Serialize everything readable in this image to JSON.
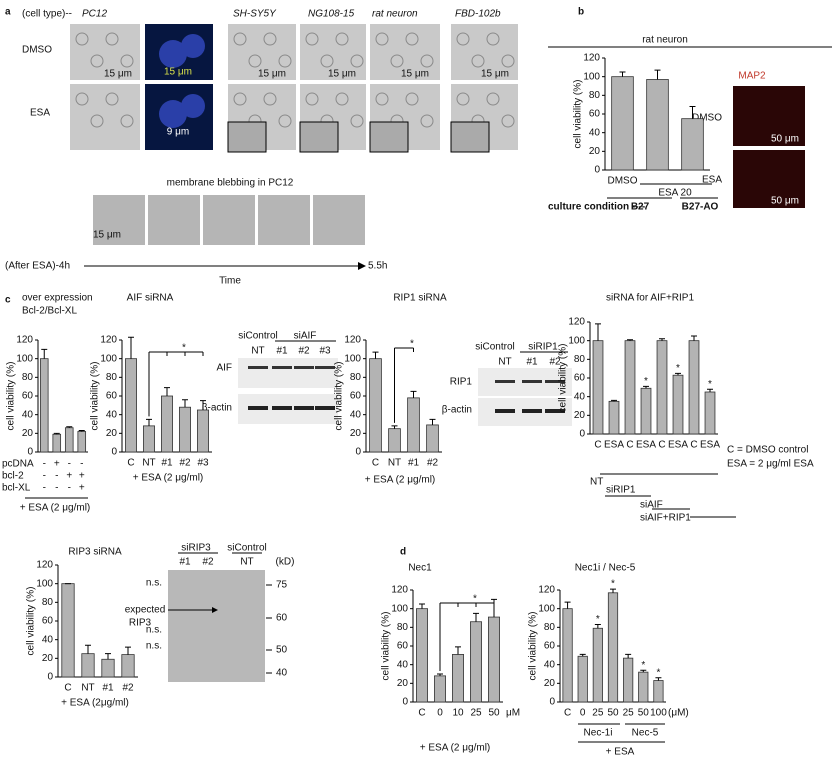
{
  "panel_letters": [
    "a",
    "b",
    "c",
    "d"
  ],
  "panel_a": {
    "cell_type_label": "(cell type)--",
    "cell_types": [
      "PC12",
      "SH-SY5Y",
      "NG108-15",
      "rat neuron",
      "FBD-102b"
    ],
    "rows": [
      "DMSO",
      "ESA"
    ],
    "scale_15": "15 μm",
    "scale_9": "9 μm",
    "blebbing_title": "membrane blebbing in PC12",
    "time_start": "(After ESA)-4h",
    "time_end": "5.5h",
    "time_label": "Time"
  },
  "map2": {
    "title": "MAP2",
    "rows": [
      "DMSO",
      "ESA"
    ],
    "scale": "50 μm"
  },
  "aif_blot": {
    "headers": [
      "siControl",
      "siAIF"
    ],
    "lanes": [
      "NT",
      "#1",
      "#2",
      "#3"
    ],
    "rows": [
      "AIF",
      "β-actin"
    ]
  },
  "rip1_blot": {
    "headers": [
      "siControl",
      "siRIP1"
    ],
    "lanes": [
      "NT",
      "#1",
      "#2"
    ],
    "rows": [
      "RIP1",
      "β-actin"
    ]
  },
  "rip3_blot": {
    "headers": [
      "siRIP3",
      "siControl"
    ],
    "lanes": [
      "#1",
      "#2",
      "NT"
    ],
    "unit": "(kD)",
    "markers": [
      75,
      60,
      50,
      40
    ],
    "expected": [
      "expected",
      "RIP3"
    ],
    "ns": "n.s."
  },
  "chart_data": [
    {
      "type": "bar",
      "title": "rat neuron",
      "ylabel": "cell viability (%)",
      "categories": [
        "DMSO",
        null,
        null
      ],
      "values": [
        100,
        97,
        55
      ],
      "errors": [
        5,
        10,
        13
      ],
      "ylim": [
        0,
        120
      ],
      "yticks": [
        0,
        20,
        40,
        60,
        80,
        100,
        120
      ],
      "color": "#b3b3b3",
      "group_label": "ESA 20",
      "condition_label": "culture condition ----",
      "conditions": [
        "B27",
        "B27-AO"
      ]
    },
    {
      "type": "bar",
      "title_lines": [
        "over expression",
        "Bcl-2/Bcl-XL"
      ],
      "ylabel": "cell viability (%)",
      "values": [
        100,
        19,
        26,
        22
      ],
      "errors": [
        10,
        1,
        1,
        1
      ],
      "ylim": [
        0,
        120
      ],
      "yticks": [
        0,
        20,
        40,
        60,
        80,
        100,
        120
      ],
      "color": "#b3b3b3",
      "sign_rows": [
        {
          "name": "pcDNA",
          "signs": [
            "-",
            "+",
            "-",
            "-"
          ]
        },
        {
          "name": "bcl-2",
          "signs": [
            "-",
            "-",
            "+",
            "+"
          ]
        },
        {
          "name": "bcl-XL",
          "signs": [
            "-",
            "-",
            "-",
            "+"
          ]
        }
      ],
      "xlabel": "+ ESA (2 μg/ml)"
    },
    {
      "type": "bar",
      "title": "AIF siRNA",
      "ylabel": "cell viability (%)",
      "categories": [
        "C",
        "NT",
        "#1",
        "#2",
        "#3"
      ],
      "values": [
        100,
        28,
        60,
        48,
        45
      ],
      "errors": [
        23,
        7,
        9,
        8,
        10
      ],
      "ylim": [
        0,
        120
      ],
      "yticks": [
        0,
        20,
        40,
        60,
        80,
        100,
        120
      ],
      "color": "#b3b3b3",
      "bracket_label": "*",
      "xlabel": "+ ESA (2 μg/ml)"
    },
    {
      "type": "bar",
      "title": "RIP1 siRNA",
      "ylabel": "cell viability (%)",
      "categories": [
        "C",
        "NT",
        "#1",
        "#2"
      ],
      "values": [
        100,
        25,
        58,
        29
      ],
      "errors": [
        7,
        3,
        7,
        6
      ],
      "ylim": [
        0,
        120
      ],
      "yticks": [
        0,
        20,
        40,
        60,
        80,
        100,
        120
      ],
      "color": "#b3b3b3",
      "bracket_label": "*",
      "xlabel": "+ ESA (2 μg/ml)"
    },
    {
      "type": "bar",
      "title": "siRNA for AIF+RIP1",
      "ylabel": "cell viability (%)",
      "categories": [
        "C",
        "ESA",
        "C",
        "ESA",
        "C",
        "ESA",
        "C",
        "ESA"
      ],
      "values": [
        100,
        35,
        100,
        49,
        100,
        63,
        100,
        45
      ],
      "errors": [
        18,
        1,
        1,
        2,
        2,
        2,
        5,
        3
      ],
      "annotations": [
        null,
        null,
        null,
        "*",
        null,
        "*",
        null,
        "*"
      ],
      "ylim": [
        0,
        120
      ],
      "yticks": [
        0,
        20,
        40,
        60,
        80,
        100,
        120
      ],
      "color": "#b3b3b3",
      "legend_lines": [
        "C = DMSO control",
        "ESA = 2 μg/ml ESA"
      ],
      "groups": [
        "NT",
        "siRIP1",
        "siAIF",
        "siAIF+RIP1"
      ]
    },
    {
      "type": "bar",
      "title": "RIP3 siRNA",
      "ylabel": "cell viability (%)",
      "categories": [
        "C",
        "NT",
        "#1",
        "#2"
      ],
      "values": [
        100,
        25,
        19,
        24
      ],
      "errors": [
        0,
        9,
        6,
        8
      ],
      "ylim": [
        0,
        120
      ],
      "yticks": [
        0,
        20,
        40,
        60,
        80,
        100,
        120
      ],
      "color": "#b3b3b3",
      "xlabel": "+ ESA (2μg/ml)"
    },
    {
      "type": "bar",
      "title": "Nec1",
      "ylabel": "cell viability (%)",
      "categories": [
        "C",
        "0",
        "10",
        "25",
        "50"
      ],
      "x_unit": "μM",
      "values": [
        100,
        28,
        51,
        86,
        91
      ],
      "errors": [
        5,
        2,
        8,
        9,
        19
      ],
      "ylim": [
        0,
        120
      ],
      "yticks": [
        0,
        20,
        40,
        60,
        80,
        100,
        120
      ],
      "color": "#b3b3b3",
      "bracket_label": "*",
      "xlabel": "+ ESA (2 μg/ml)"
    },
    {
      "type": "bar",
      "title": "Nec1i / Nec-5",
      "ylabel": "cell viability (%)",
      "categories": [
        "C",
        "0",
        "25",
        "50",
        "25",
        "50",
        "100"
      ],
      "x_unit": "(μM)",
      "values": [
        100,
        49,
        79,
        117,
        47,
        32,
        23
      ],
      "errors": [
        7,
        2,
        4,
        4,
        4,
        2,
        3
      ],
      "annotations": [
        null,
        null,
        "*",
        "*",
        null,
        "*",
        "*"
      ],
      "ylim": [
        0,
        120
      ],
      "yticks": [
        0,
        20,
        40,
        60,
        80,
        100,
        120
      ],
      "color": "#b3b3b3",
      "groups": [
        "Nec-1i",
        "Nec-5"
      ],
      "xlabel": "+ ESA"
    }
  ]
}
